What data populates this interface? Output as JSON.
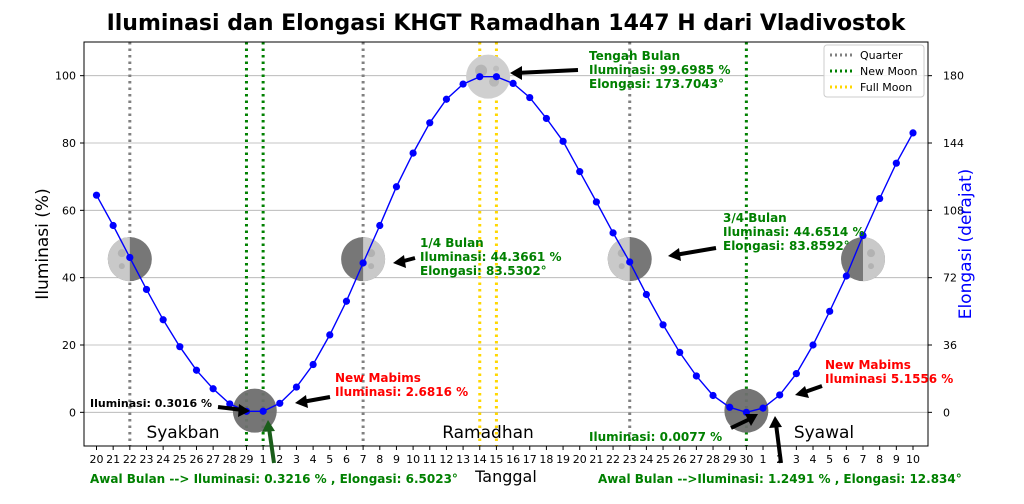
{
  "chart_data": {
    "type": "line",
    "title": "Iluminasi dan Elongasi KHGT Ramadhan 1447 H dari Vladivostok",
    "xlabel": "Tanggal",
    "ylabel": "Iluminasi (%)",
    "ylabel_right": "Elongasi (derajat)",
    "ylim": [
      -10,
      110
    ],
    "yticks": [
      0,
      20,
      40,
      60,
      80,
      100
    ],
    "y2ticks": [
      0,
      36,
      72,
      108,
      144,
      180
    ],
    "grid": true,
    "xticks": [
      "20",
      "21",
      "22",
      "23",
      "24",
      "25",
      "26",
      "27",
      "28",
      "29",
      "1",
      "2",
      "3",
      "4",
      "5",
      "6",
      "7",
      "8",
      "9",
      "10",
      "11",
      "12",
      "13",
      "14",
      "15",
      "16",
      "17",
      "18",
      "19",
      "20",
      "21",
      "22",
      "23",
      "24",
      "25",
      "26",
      "27",
      "28",
      "29",
      "30",
      "1",
      "2",
      "3",
      "4",
      "5",
      "6",
      "7",
      "8",
      "9",
      "10"
    ],
    "x": [
      1,
      2,
      3,
      4,
      5,
      6,
      7,
      8,
      9,
      10,
      11,
      12,
      13,
      14,
      15,
      16,
      17,
      18,
      19,
      20,
      21,
      22,
      23,
      24,
      25,
      26,
      27,
      28,
      29,
      30,
      31,
      32,
      33,
      34,
      35,
      36,
      37,
      38,
      39,
      40,
      41,
      42,
      43,
      44,
      45,
      46,
      47,
      48,
      49,
      50
    ],
    "series": [
      {
        "values": [
          64.5,
          55.5,
          46,
          36.5,
          27.5,
          19.5,
          12.5,
          7,
          2.5,
          0.3016,
          0.3216,
          2.6816,
          7.5,
          14.2,
          23,
          33,
          44.3661,
          55.5,
          67,
          77,
          86,
          93,
          97.5,
          99.6985,
          99.6985,
          97.7,
          93.5,
          87.3,
          80.5,
          71.5,
          62.5,
          53.3,
          44.6514,
          35,
          26,
          17.8,
          10.8,
          5,
          1.5,
          0.0077,
          1.2491,
          5.1556,
          11.5,
          20,
          30,
          40.5,
          52.5,
          63.5,
          74,
          83
        ]
      }
    ],
    "vlines": [
      {
        "x": 3,
        "type": "quarter"
      },
      {
        "x": 10,
        "type": "new"
      },
      {
        "x": 11,
        "type": "new"
      },
      {
        "x": 17,
        "type": "quarter"
      },
      {
        "x": 24,
        "type": "full"
      },
      {
        "x": 25,
        "type": "full"
      },
      {
        "x": 33,
        "type": "quarter"
      },
      {
        "x": 40,
        "type": "new"
      }
    ],
    "legend": {
      "placement": "top-right",
      "entries": [
        "Quarter",
        "New Moon",
        "Full Moon"
      ]
    },
    "month_labels": [
      "Syakban",
      "Ramadhan",
      "Syawal"
    ],
    "annotations": {
      "tengah_bulan": [
        "Tengah Bulan",
        "Iluminasi: 99.6985 %",
        "Elongasi: 173.7043°"
      ],
      "quarter_1": [
        "1/4 Bulan",
        "Iluminasi: 44.3661 %",
        "Elongasi: 83.5302°"
      ],
      "quarter_3": [
        "3/4 Bulan",
        "Iluminasi: 44.6514 %",
        "Elongasi: 83.8592°"
      ],
      "mabims_1": [
        "New Mabims",
        "Iluminasi: 2.6816 %"
      ],
      "mabims_2": [
        "New Mabims",
        "Iluminasi 5.1556 %"
      ],
      "illum_1": "Iluminasi: 0.3016 %",
      "illum_2": "Iluminasi: 0.0077 %",
      "awal_1": "Awal Bulan --> Iluminasi: 0.3216 % , Elongasi: 6.5023°",
      "awal_2": "Awal Bulan -->Iluminasi: 1.2491 % , Elongasi: 12.834°"
    },
    "colors": {
      "line": "#0000ff",
      "quarter": "#808080",
      "new_moon": "#008000",
      "full_moon": "#ffd700",
      "annotation_green": "#008000",
      "annotation_red": "#ff0000",
      "right_axis": "#0000ff"
    }
  }
}
